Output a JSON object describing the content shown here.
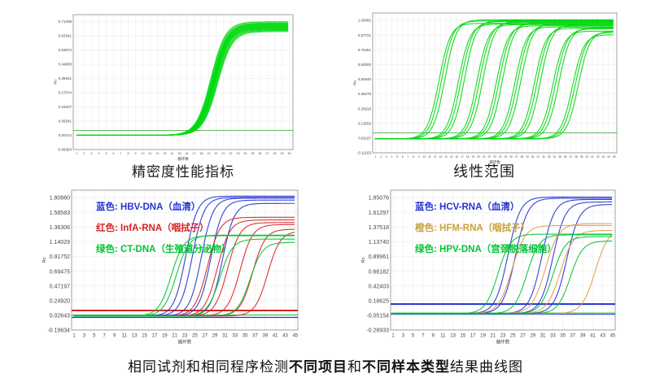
{
  "captions": {
    "top_left": "精密度性能指标",
    "top_right": "线性范围",
    "bottom_parts": [
      {
        "text": "相同试剂和相同程序检测",
        "bold": false
      },
      {
        "text": "不同项目",
        "bold": true
      },
      {
        "text": "和",
        "bold": false
      },
      {
        "text": "不同样本类型",
        "bold": true
      },
      {
        "text": "结果曲线图",
        "bold": false
      }
    ]
  },
  "colors": {
    "bright_green": "#00d90f",
    "threshold_green": "#2e9e2e",
    "blue": "#2433d0",
    "red": "#d92323",
    "orange": "#e89a4a",
    "green": "#00c432",
    "grid": "#ededed",
    "border": "#8a8a8a",
    "axis_text": "#444444"
  },
  "chart_data": [
    {
      "id": "precision",
      "type": "line",
      "title": "精密度性能指标",
      "xlabel": "循环数",
      "ylabel": "Rn",
      "x_domain": [
        0.5,
        30.5
      ],
      "y_domain": [
        -0.084,
        0.757
      ],
      "x_ticks": [
        "1",
        "2",
        "3",
        "4",
        "5",
        "6",
        "7",
        "8",
        "9",
        "10",
        "11",
        "12",
        "13",
        "14",
        "15",
        "16",
        "17",
        "18",
        "19",
        "20",
        "21",
        "22",
        "23",
        "24",
        "25",
        "26",
        "27",
        "28",
        "29",
        "30"
      ],
      "y_ticks": [
        "0.71408",
        "0.62541",
        "0.53674",
        "0.44808",
        "0.35941",
        "0.27074",
        "0.18207",
        "0.09341",
        "0.00474",
        "-0.08393"
      ],
      "grid": true,
      "legend": [],
      "threshold_lines": [
        {
          "color": "#2e9e2e",
          "value": 0.035,
          "width": 0.8
        }
      ],
      "series": [
        {
          "name": "replicate-curves",
          "color": "#00d90f",
          "k": 1.0,
          "baseline": 0.005,
          "curves": [
            [
              19.3,
              0.712
            ],
            [
              19.4,
              0.705
            ],
            [
              19.5,
              0.7
            ],
            [
              19.55,
              0.696
            ],
            [
              19.6,
              0.692
            ],
            [
              19.65,
              0.688
            ],
            [
              19.7,
              0.684
            ],
            [
              19.75,
              0.68
            ],
            [
              19.8,
              0.676
            ],
            [
              19.85,
              0.672
            ],
            [
              19.9,
              0.668
            ],
            [
              20.0,
              0.663
            ],
            [
              20.1,
              0.658
            ],
            [
              20.2,
              0.652
            ]
          ]
        }
      ]
    },
    {
      "id": "linear-range",
      "type": "line",
      "title": "线性范围",
      "xlabel": "循环数",
      "ylabel": "Rn",
      "x_domain": [
        0.5,
        45.5
      ],
      "y_domain": [
        -0.112,
        1.062
      ],
      "x_ticks": [
        "1",
        "2",
        "3",
        "4",
        "5",
        "6",
        "7",
        "8",
        "9",
        "10",
        "11",
        "12",
        "13",
        "14",
        "15",
        "16",
        "17",
        "18",
        "19",
        "20",
        "21",
        "22",
        "23",
        "24",
        "25",
        "26",
        "27",
        "28",
        "29",
        "30",
        "31",
        "32",
        "33",
        "34",
        "35",
        "36",
        "37",
        "38",
        "39",
        "40",
        "41",
        "42",
        "43",
        "44",
        "45"
      ],
      "y_ticks": [
        "1.00082",
        "0.87721",
        "0.75361",
        "0.63000",
        "0.50640",
        "0.38279",
        "0.25918",
        "0.13558",
        "0.01197",
        "-0.11163"
      ],
      "grid": true,
      "legend": [],
      "threshold_lines": [
        {
          "color": "#2e9e2e",
          "value": 0.055,
          "width": 0.8
        }
      ],
      "series": [
        {
          "name": "dilution-series",
          "color": "#00d90f",
          "k": 0.95,
          "baseline": 0.005,
          "curves": [
            [
              12.7,
              0.975
            ],
            [
              13.2,
              0.995
            ],
            [
              13.8,
              1.005
            ],
            [
              16.3,
              0.97
            ],
            [
              16.8,
              0.99
            ],
            [
              17.4,
              1.0
            ],
            [
              19.7,
              0.965
            ],
            [
              20.2,
              0.985
            ],
            [
              20.8,
              0.995
            ],
            [
              23.3,
              0.955
            ],
            [
              23.8,
              0.975
            ],
            [
              24.4,
              0.985
            ],
            [
              26.7,
              0.945
            ],
            [
              27.2,
              0.965
            ],
            [
              27.8,
              0.975
            ],
            [
              30.3,
              0.935
            ],
            [
              30.8,
              0.955
            ],
            [
              31.4,
              0.965
            ],
            [
              33.7,
              0.91
            ],
            [
              34.2,
              0.93
            ],
            [
              34.8,
              0.94
            ],
            [
              37.3,
              0.88
            ],
            [
              37.8,
              0.9
            ],
            [
              38.4,
              0.91
            ]
          ]
        }
      ]
    },
    {
      "id": "multi-target-left",
      "type": "line",
      "title": "",
      "xlabel": "循环数",
      "ylabel": "Rn",
      "x_domain": [
        0.5,
        45.5
      ],
      "y_domain": [
        -0.196,
        1.92
      ],
      "x_ticks": [
        "1",
        "3",
        "5",
        "7",
        "9",
        "11",
        "13",
        "15",
        "17",
        "19",
        "21",
        "23",
        "25",
        "27",
        "29",
        "31",
        "33",
        "35",
        "37",
        "39",
        "41",
        "43",
        "45"
      ],
      "y_ticks": [
        "1.80860",
        "1.58583",
        "1.36306",
        "1.14029",
        "0.91752",
        "0.69475",
        "0.47197",
        "0.24920",
        "0.02643",
        "-0.19634"
      ],
      "grid": true,
      "legend": [
        {
          "text": "蓝色: HBV-DNA（血清）",
          "color": "#2433d0"
        },
        {
          "text": "红色: InfA-RNA（咽拭子）",
          "color": "#d92323"
        },
        {
          "text": "绿色: CT-DNA（生殖道分泌物）",
          "color": "#00c432"
        }
      ],
      "threshold_lines": [
        {
          "color": "#d92323",
          "value": 0.1,
          "width": 2
        },
        {
          "color": "#00c432",
          "value": 0.03,
          "width": 1
        },
        {
          "color": "#2433d0",
          "value": -0.005,
          "width": 1.2
        }
      ],
      "series": [
        {
          "name": "HBV-DNA",
          "color": "#2433d0",
          "k": 0.85,
          "baseline": 0.015,
          "curves": [
            [
              23.2,
              1.83
            ],
            [
              24.5,
              1.81
            ],
            [
              26.3,
              1.8
            ],
            [
              28.2,
              1.77
            ],
            [
              30.5,
              1.72
            ]
          ]
        },
        {
          "name": "InfA-RNA",
          "color": "#d92323",
          "k": 0.8,
          "baseline": 0.015,
          "curves": [
            [
              27.5,
              1.51
            ],
            [
              29.5,
              1.47
            ],
            [
              31.5,
              1.43
            ],
            [
              34.0,
              1.4
            ],
            [
              36.5,
              1.33
            ],
            [
              39.5,
              1.3
            ]
          ]
        },
        {
          "name": "CT-DNA",
          "color": "#00c432",
          "k": 0.8,
          "baseline": 0.015,
          "curves": [
            [
              20.3,
              1.23
            ],
            [
              21.3,
              1.24
            ],
            [
              30.0,
              1.18
            ],
            [
              36.0,
              1.13
            ]
          ]
        }
      ]
    },
    {
      "id": "multi-target-right",
      "type": "line",
      "title": "",
      "xlabel": "循环数",
      "ylabel": "Rn",
      "x_domain": [
        0.5,
        45.5
      ],
      "y_domain": [
        -0.289,
        1.97
      ],
      "x_ticks": [
        "1",
        "3",
        "5",
        "7",
        "9",
        "11",
        "13",
        "15",
        "17",
        "19",
        "21",
        "23",
        "25",
        "27",
        "29",
        "31",
        "33",
        "35",
        "37",
        "39",
        "41",
        "43",
        "45"
      ],
      "y_ticks": [
        "1.85076",
        "1.61297",
        "1.37518",
        "1.13740",
        "0.89961",
        "0.66182",
        "0.42403",
        "0.18625",
        "-0.05154",
        "-0.28933"
      ],
      "grid": true,
      "legend": [
        {
          "text": "蓝色: HCV-RNA（血清）",
          "color": "#2433d0"
        },
        {
          "text": "橙色: HFM-RNA（咽拭子）",
          "color": "#c8a23c"
        },
        {
          "text": "绿色: HPV-DNA（宫颈脱落细胞）",
          "color": "#00c432"
        }
      ],
      "threshold_lines": [
        {
          "color": "#2433d0",
          "value": 0.13,
          "width": 2
        },
        {
          "color": "#00c432",
          "value": -0.015,
          "width": 1
        },
        {
          "color": "#2433d0",
          "value": -0.035,
          "width": 1
        }
      ],
      "series": [
        {
          "name": "HCV-RNA",
          "color": "#2433d0",
          "k": 0.8,
          "baseline": -0.025,
          "curves": [
            [
              24.0,
              1.86
            ],
            [
              25.5,
              1.84
            ],
            [
              30.8,
              1.82
            ],
            [
              33.0,
              1.78
            ],
            [
              35.8,
              1.74
            ]
          ]
        },
        {
          "name": "HFM-RNA",
          "color": "#e89a4a",
          "k": 0.75,
          "baseline": -0.025,
          "curves": [
            [
              24.8,
              1.4
            ],
            [
              31.5,
              1.43
            ],
            [
              34.5,
              1.32
            ],
            [
              41.5,
              1.35
            ]
          ]
        },
        {
          "name": "HPV-DNA",
          "color": "#00c432",
          "k": 0.8,
          "baseline": -0.025,
          "curves": [
            [
              22.0,
              1.26
            ],
            [
              27.8,
              1.25
            ],
            [
              33.0,
              1.22
            ],
            [
              36.5,
              1.15
            ]
          ]
        }
      ]
    }
  ]
}
